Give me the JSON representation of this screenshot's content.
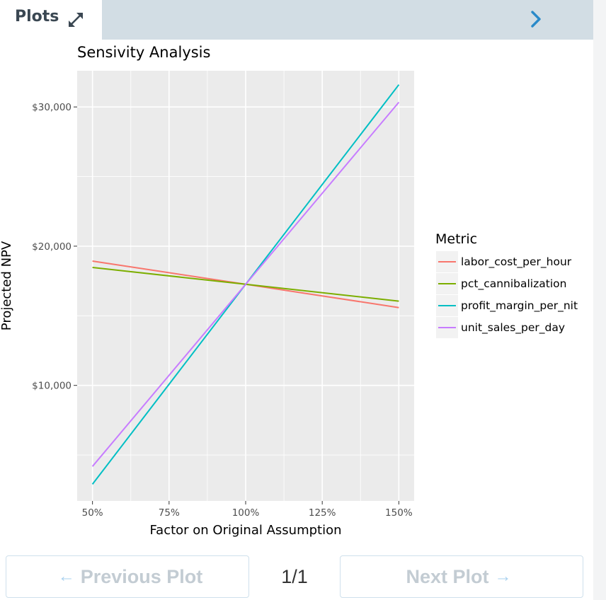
{
  "header": {
    "title": "Plots",
    "expand_icon": "expand-icon",
    "collapse_icon": "chevron-right-icon",
    "bar_color": "#d2dde4"
  },
  "chart_data": {
    "type": "line",
    "title": "Sensivity Analysis",
    "xlabel": "Factor on Original Assumption",
    "ylabel": "Projected NPV",
    "x": [
      0.5,
      1.0,
      1.5
    ],
    "x_tick_values": [
      0.5,
      0.75,
      1.0,
      1.25,
      1.5
    ],
    "x_tick_labels": [
      "50%",
      "75%",
      "100%",
      "125%",
      "150%"
    ],
    "xlim": [
      0.45,
      1.55
    ],
    "y_tick_values": [
      10000,
      20000,
      30000
    ],
    "y_tick_labels": [
      "$10,000",
      "$20,000",
      "$30,000"
    ],
    "ylim": [
      1700,
      32600
    ],
    "grid": true,
    "legend_title": "Metric",
    "legend_position": "right",
    "series": [
      {
        "name": "labor_cost_per_hour",
        "color": "#f8766d",
        "values": [
          18930,
          17260,
          15590
        ]
      },
      {
        "name": "pct_cannibalization",
        "color": "#7cae00",
        "values": [
          18470,
          17260,
          16050
        ]
      },
      {
        "name": "profit_margin_per_nit",
        "color": "#00bfc4",
        "values": [
          2900,
          17260,
          31600
        ]
      },
      {
        "name": "unit_sales_per_day",
        "color": "#c77cff",
        "values": [
          4180,
          17260,
          30340
        ]
      }
    ]
  },
  "pagination": {
    "prev_label": "Previous Plot",
    "next_label": "Next Plot",
    "page_indicator": "1/1"
  }
}
